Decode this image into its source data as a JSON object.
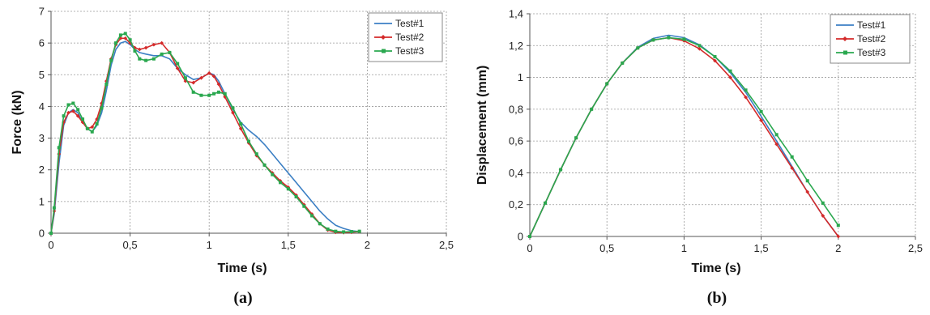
{
  "chart_data": [
    {
      "type": "line",
      "panel_label": "(a)",
      "xlabel": "Time (s)",
      "ylabel": "Force (kN)",
      "xlim": [
        0,
        2.5
      ],
      "ylim": [
        0,
        7
      ],
      "x_ticks": [
        "0",
        "0,5",
        "1",
        "1,5",
        "2",
        "2,5"
      ],
      "y_ticks": [
        "0",
        "1",
        "2",
        "3",
        "4",
        "5",
        "6",
        "7"
      ],
      "grid": true,
      "legend_position": "top-right",
      "series": [
        {
          "name": "Test#1",
          "color": "#3b7fc4",
          "marker": "none",
          "x": [
            0,
            0.02,
            0.05,
            0.08,
            0.11,
            0.14,
            0.17,
            0.2,
            0.23,
            0.26,
            0.29,
            0.32,
            0.35,
            0.38,
            0.41,
            0.44,
            0.47,
            0.5,
            0.53,
            0.56,
            0.6,
            0.65,
            0.7,
            0.75,
            0.8,
            0.85,
            0.9,
            0.95,
            1.0,
            1.03,
            1.06,
            1.1,
            1.15,
            1.2,
            1.25,
            1.3,
            1.35,
            1.4,
            1.45,
            1.5,
            1.55,
            1.6,
            1.65,
            1.7,
            1.75,
            1.8,
            1.85,
            1.9,
            1.95
          ],
          "y": [
            0,
            0.6,
            2.2,
            3.4,
            3.8,
            3.9,
            3.8,
            3.5,
            3.3,
            3.2,
            3.4,
            3.8,
            4.5,
            5.3,
            5.8,
            6.0,
            6.05,
            5.95,
            5.8,
            5.7,
            5.65,
            5.6,
            5.6,
            5.5,
            5.2,
            5.0,
            4.85,
            4.9,
            5.05,
            5.0,
            4.8,
            4.4,
            3.9,
            3.5,
            3.25,
            3.05,
            2.8,
            2.5,
            2.2,
            1.9,
            1.6,
            1.3,
            1.0,
            0.7,
            0.45,
            0.25,
            0.15,
            0.08,
            0.05
          ]
        },
        {
          "name": "Test#2",
          "color": "#d42a2a",
          "marker": "diamond",
          "x": [
            0,
            0.02,
            0.05,
            0.08,
            0.11,
            0.14,
            0.17,
            0.2,
            0.23,
            0.26,
            0.29,
            0.32,
            0.35,
            0.38,
            0.41,
            0.44,
            0.47,
            0.5,
            0.53,
            0.56,
            0.6,
            0.65,
            0.7,
            0.75,
            0.8,
            0.85,
            0.9,
            0.95,
            1.0,
            1.03,
            1.06,
            1.1,
            1.15,
            1.2,
            1.25,
            1.3,
            1.35,
            1.4,
            1.45,
            1.5,
            1.55,
            1.6,
            1.65,
            1.7,
            1.75,
            1.8,
            1.85,
            1.9,
            1.95
          ],
          "y": [
            0,
            0.7,
            2.5,
            3.5,
            3.8,
            3.85,
            3.7,
            3.5,
            3.3,
            3.35,
            3.6,
            4.1,
            4.8,
            5.5,
            5.95,
            6.15,
            6.15,
            6.0,
            5.85,
            5.8,
            5.85,
            5.95,
            6.0,
            5.7,
            5.2,
            4.8,
            4.75,
            4.9,
            5.05,
            4.95,
            4.7,
            4.3,
            3.8,
            3.3,
            2.85,
            2.45,
            2.15,
            1.9,
            1.65,
            1.45,
            1.2,
            0.9,
            0.6,
            0.3,
            0.1,
            0.03,
            0.02,
            0.03,
            0.05
          ]
        },
        {
          "name": "Test#3",
          "color": "#2aa84f",
          "marker": "square",
          "x": [
            0,
            0.02,
            0.05,
            0.08,
            0.11,
            0.14,
            0.17,
            0.2,
            0.23,
            0.26,
            0.29,
            0.32,
            0.35,
            0.38,
            0.41,
            0.44,
            0.47,
            0.5,
            0.53,
            0.56,
            0.6,
            0.65,
            0.7,
            0.75,
            0.8,
            0.85,
            0.9,
            0.95,
            1.0,
            1.03,
            1.06,
            1.1,
            1.15,
            1.2,
            1.25,
            1.3,
            1.35,
            1.4,
            1.45,
            1.5,
            1.55,
            1.6,
            1.65,
            1.7,
            1.75,
            1.8,
            1.85,
            1.9,
            1.95
          ],
          "y": [
            0,
            0.8,
            2.7,
            3.7,
            4.05,
            4.1,
            3.9,
            3.6,
            3.3,
            3.2,
            3.45,
            3.95,
            4.7,
            5.45,
            6.0,
            6.25,
            6.3,
            6.1,
            5.75,
            5.5,
            5.45,
            5.5,
            5.65,
            5.7,
            5.35,
            4.9,
            4.45,
            4.35,
            4.35,
            4.4,
            4.45,
            4.4,
            3.95,
            3.45,
            2.9,
            2.5,
            2.15,
            1.85,
            1.6,
            1.4,
            1.15,
            0.85,
            0.55,
            0.3,
            0.13,
            0.06,
            0.04,
            0.05,
            0.06
          ]
        }
      ]
    },
    {
      "type": "line",
      "panel_label": "(b)",
      "xlabel": "Time (s)",
      "ylabel": "Displacement (mm)",
      "xlim": [
        0,
        2.5
      ],
      "ylim": [
        0,
        1.4
      ],
      "x_ticks": [
        "0",
        "0,5",
        "1",
        "1,5",
        "2",
        "2,5"
      ],
      "y_ticks": [
        "0",
        "0,2",
        "0,4",
        "0,6",
        "0,8",
        "1",
        "1,2",
        "1,4"
      ],
      "grid": true,
      "legend_position": "top-right",
      "series": [
        {
          "name": "Test#1",
          "color": "#3b7fc4",
          "marker": "none",
          "x": [
            0,
            0.1,
            0.2,
            0.3,
            0.4,
            0.5,
            0.6,
            0.7,
            0.8,
            0.9,
            1.0,
            1.1,
            1.2,
            1.3,
            1.4,
            1.5,
            1.6,
            1.7,
            1.8,
            1.9,
            2.0
          ],
          "y": [
            0,
            0.21,
            0.42,
            0.62,
            0.8,
            0.96,
            1.09,
            1.19,
            1.245,
            1.265,
            1.25,
            1.205,
            1.13,
            1.03,
            0.905,
            0.755,
            0.6,
            0.44,
            0.28,
            0.13,
            0
          ]
        },
        {
          "name": "Test#2",
          "color": "#d42a2a",
          "marker": "diamond",
          "x": [
            0,
            0.1,
            0.2,
            0.3,
            0.4,
            0.5,
            0.6,
            0.7,
            0.8,
            0.9,
            1.0,
            1.1,
            1.2,
            1.3,
            1.4,
            1.5,
            1.6,
            1.7,
            1.8,
            1.9,
            2.0
          ],
          "y": [
            0,
            0.21,
            0.42,
            0.62,
            0.8,
            0.96,
            1.09,
            1.185,
            1.235,
            1.25,
            1.23,
            1.18,
            1.105,
            1.0,
            0.875,
            0.73,
            0.58,
            0.43,
            0.28,
            0.13,
            -0.01
          ]
        },
        {
          "name": "Test#3",
          "color": "#2aa84f",
          "marker": "square",
          "x": [
            0,
            0.1,
            0.2,
            0.3,
            0.4,
            0.5,
            0.6,
            0.7,
            0.8,
            0.9,
            1.0,
            1.1,
            1.2,
            1.3,
            1.4,
            1.5,
            1.6,
            1.7,
            1.8,
            1.9,
            2.0
          ],
          "y": [
            0,
            0.21,
            0.42,
            0.62,
            0.8,
            0.96,
            1.09,
            1.185,
            1.235,
            1.25,
            1.24,
            1.2,
            1.13,
            1.04,
            0.92,
            0.785,
            0.64,
            0.5,
            0.35,
            0.21,
            0.07
          ]
        }
      ]
    }
  ]
}
